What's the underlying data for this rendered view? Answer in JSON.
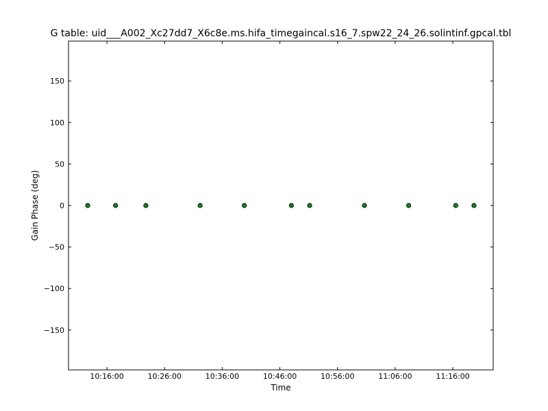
{
  "chart_data": {
    "type": "scatter",
    "title": "G table: uid___A002_Xc27dd7_X6c8e.ms.hifa_timegaincal.s16_7.spw22_24_26.solintinf.gpcal.tbl",
    "xlabel": "Time",
    "ylabel": "Gain Phase (deg)",
    "xlim": [
      "10:09:20",
      "11:23:00"
    ],
    "ylim": [
      -198,
      198
    ],
    "xticks": [
      {
        "value": "10:16:00",
        "label": "10:16:00"
      },
      {
        "value": "10:26:00",
        "label": "10:26:00"
      },
      {
        "value": "10:36:00",
        "label": "10:36:00"
      },
      {
        "value": "10:46:00",
        "label": "10:46:00"
      },
      {
        "value": "10:56:00",
        "label": "10:56:00"
      },
      {
        "value": "11:06:00",
        "label": "11:06:00"
      },
      {
        "value": "11:16:00",
        "label": "11:16:00"
      }
    ],
    "yticks": [
      {
        "value": 150,
        "label": "150"
      },
      {
        "value": 100,
        "label": "100"
      },
      {
        "value": 50,
        "label": "50"
      },
      {
        "value": 0,
        "label": "0"
      },
      {
        "value": -50,
        "label": "−50"
      },
      {
        "value": -100,
        "label": "−100"
      },
      {
        "value": -150,
        "label": "−150"
      }
    ],
    "grid": false,
    "marker_color": "#1a801a",
    "marker_edge_color": "#000000",
    "points": [
      {
        "x": "10:12:40",
        "y": 0
      },
      {
        "x": "10:17:30",
        "y": 0
      },
      {
        "x": "10:22:45",
        "y": 0
      },
      {
        "x": "10:32:10",
        "y": 0
      },
      {
        "x": "10:39:50",
        "y": 0
      },
      {
        "x": "10:48:00",
        "y": 0
      },
      {
        "x": "10:51:10",
        "y": 0
      },
      {
        "x": "11:00:40",
        "y": 0
      },
      {
        "x": "11:08:20",
        "y": 0
      },
      {
        "x": "11:16:30",
        "y": 0
      },
      {
        "x": "11:19:40",
        "y": 0
      }
    ]
  }
}
